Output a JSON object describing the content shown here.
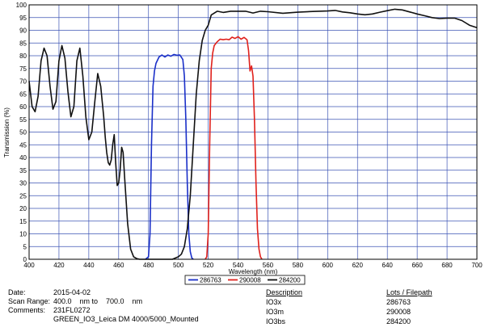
{
  "chart_data": {
    "type": "line",
    "xlabel": "Wavelength (nm)",
    "ylabel": "Transmission (%)",
    "xlim": [
      400,
      700
    ],
    "ylim": [
      0,
      100
    ],
    "xticks": [
      400,
      420,
      440,
      460,
      480,
      500,
      520,
      540,
      560,
      580,
      600,
      620,
      640,
      660,
      680,
      700
    ],
    "yticks": [
      0,
      5,
      10,
      15,
      20,
      25,
      30,
      35,
      40,
      45,
      50,
      55,
      60,
      65,
      70,
      75,
      80,
      85,
      90,
      95,
      100
    ],
    "grid": true,
    "legend_position": "bottom-center",
    "series": [
      {
        "name": "286763",
        "color": "#1a2fc8",
        "x": [
          478,
          480,
          481,
          482,
          483,
          484,
          485,
          487,
          489,
          491,
          493,
          495,
          497,
          499,
          501,
          503,
          504,
          505,
          506,
          507,
          508,
          509,
          510
        ],
        "y": [
          0,
          1,
          10,
          45,
          68,
          74,
          77,
          79.5,
          80.3,
          79.5,
          80.3,
          79.8,
          80.5,
          80.2,
          80.3,
          78.5,
          72,
          55,
          30,
          10,
          3,
          0.5,
          0
        ]
      },
      {
        "name": "290008",
        "color": "#e0211c",
        "x": [
          518,
          519,
          520,
          521,
          522,
          523,
          524,
          526,
          528,
          530,
          532,
          534,
          536,
          538,
          540,
          542,
          544,
          546,
          547,
          548,
          549,
          550,
          551,
          552,
          553,
          554,
          555,
          556
        ],
        "y": [
          0,
          1,
          10,
          45,
          75,
          81,
          84,
          85.5,
          86.5,
          86.3,
          86.5,
          86.3,
          87.3,
          86.8,
          87.5,
          86.5,
          87.2,
          86.3,
          82,
          74,
          76,
          72,
          55,
          30,
          12,
          4,
          1,
          0
        ]
      },
      {
        "name": "284200",
        "color": "#111111",
        "x": [
          400,
          402,
          404,
          406,
          408,
          410,
          412,
          414,
          416,
          418,
          420,
          422,
          424,
          426,
          428,
          430,
          432,
          434,
          436,
          438,
          440,
          442,
          444,
          446,
          448,
          450,
          451,
          452,
          453,
          454,
          455,
          456,
          457,
          458,
          459,
          460,
          461,
          462,
          463,
          464,
          466,
          468,
          470,
          472,
          474,
          476,
          478,
          480,
          490,
          496,
          500,
          502,
          504,
          506,
          508,
          510,
          512,
          514,
          516,
          518,
          520,
          522,
          526,
          530,
          535,
          540,
          545,
          550,
          555,
          560,
          570,
          580,
          590,
          600,
          605,
          610,
          615,
          620,
          625,
          630,
          635,
          640,
          645,
          650,
          655,
          660,
          665,
          670,
          675,
          680,
          685,
          690,
          695,
          700
        ],
        "y": [
          70,
          60,
          58,
          64,
          78,
          83,
          80,
          68,
          59,
          62,
          78,
          84,
          79,
          66,
          56,
          60,
          78,
          83,
          72,
          56,
          47,
          50,
          62,
          73,
          68,
          56,
          48,
          42,
          38,
          37,
          39,
          45,
          49,
          38,
          29,
          30,
          35,
          44,
          42,
          32,
          14,
          4,
          1,
          0.3,
          0,
          0,
          0,
          0,
          0,
          0,
          1,
          2,
          5,
          12,
          25,
          45,
          65,
          78,
          86,
          90,
          92,
          96,
          97.5,
          97,
          97.5,
          97.5,
          97.5,
          96.8,
          97.5,
          97.3,
          96.7,
          97.1,
          97.4,
          97.6,
          97.8,
          97.2,
          96.9,
          96.4,
          96.1,
          96.4,
          97.1,
          97.7,
          98.3,
          98.0,
          97.2,
          96.4,
          95.7,
          95.0,
          94.6,
          94.8,
          94.8,
          93.8,
          92.0,
          91.0
        ]
      }
    ]
  },
  "info": {
    "date_label": "Date:",
    "date_value": "2015-04-02",
    "scan_range_label": "Scan Range:",
    "scan_range_value": "400.0    nm to    700.0    nm",
    "comments_label": "Comments:",
    "comments_line1": "231FL0272",
    "comments_line2": "GREEN_IO3_Leica DM 4000/5000_Mounted"
  },
  "table": {
    "col1_header": "Description",
    "col2_header": "Lots / Filepath",
    "rows": [
      {
        "description": "IO3x",
        "lot": "286763"
      },
      {
        "description": "IO3m",
        "lot": "290008"
      },
      {
        "description": "IO3bs",
        "lot": "284200"
      }
    ]
  }
}
